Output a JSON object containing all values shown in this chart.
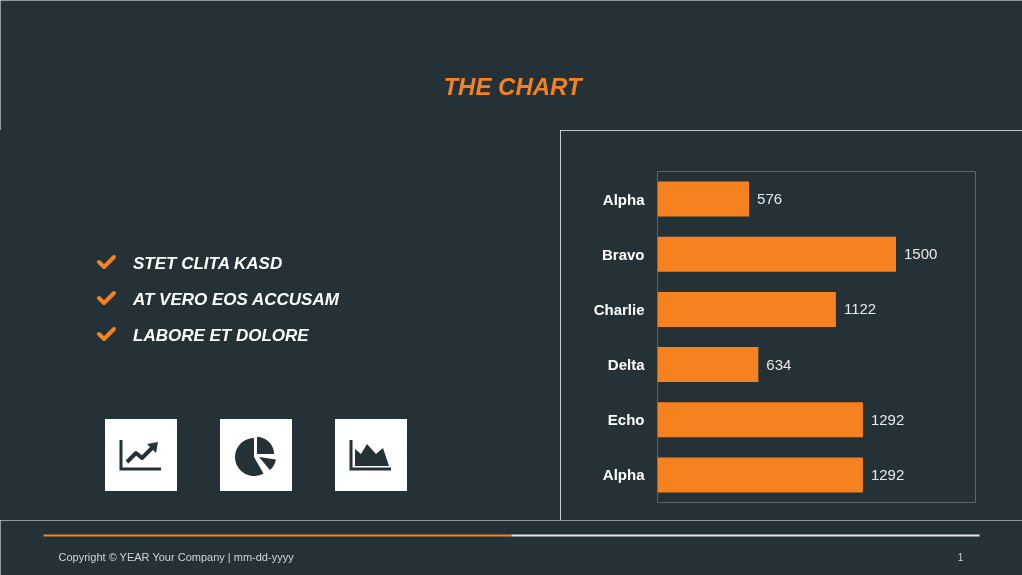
{
  "chart_data": {
    "type": "bar",
    "orientation": "horizontal",
    "title": "THE CHART",
    "categories": [
      "Alpha",
      "Bravo",
      "Charlie",
      "Delta",
      "Echo",
      "Alpha"
    ],
    "values": [
      576,
      1500,
      1122,
      634,
      1292,
      1292
    ],
    "color": "#f5821f",
    "xlim": [
      0,
      2000
    ],
    "data_labels": true,
    "tick_labels": "y",
    "annotations": [
      "STET CLITA KASD",
      "AT VERO EOS ACCUSAM",
      "LABORE ET DOLORE",
      "Copyright © YEAR Your Company  |  mm-dd-yyyy",
      "1"
    ]
  }
}
